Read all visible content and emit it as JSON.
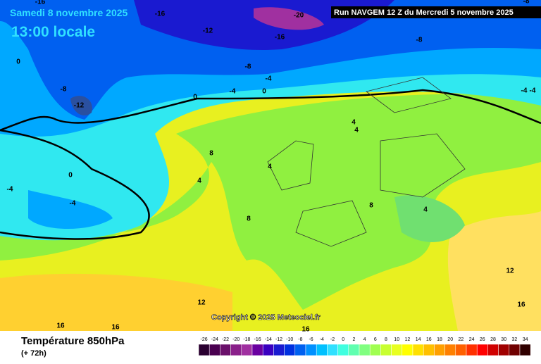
{
  "header": {
    "date": "Samedi 8 novembre 2025",
    "time": "13:00 locale",
    "run": "Run NAVGEM 12 Z du Mercredi 5 novembre 2025",
    "copyright": "Copyright © 2025 Meteociel.fr"
  },
  "footer": {
    "title": "Température 850hPa",
    "subtitle": "(+ 72h)"
  },
  "colorbar": {
    "ticks": [
      -26,
      -24,
      -22,
      -20,
      -18,
      -16,
      -14,
      -12,
      -10,
      -8,
      -6,
      -4,
      -2,
      0,
      2,
      4,
      6,
      8,
      10,
      12,
      14,
      16,
      18,
      20,
      22,
      24,
      26,
      28,
      30,
      32,
      34
    ],
    "colors": [
      "#2a0030",
      "#4a0050",
      "#6a106a",
      "#8a208a",
      "#a030a0",
      "#6a00a0",
      "#3a00c0",
      "#1a1ad0",
      "#0030e0",
      "#0060f0",
      "#0090ff",
      "#00c0ff",
      "#30e0ff",
      "#40ffe0",
      "#60ffb0",
      "#80ff80",
      "#a0ff50",
      "#c8ff30",
      "#e8ff20",
      "#ffff00",
      "#ffe000",
      "#ffc000",
      "#ffa000",
      "#ff8000",
      "#ff6000",
      "#ff3000",
      "#ff0000",
      "#d00000",
      "#a00000",
      "#700000",
      "#300000"
    ]
  },
  "contour_labels": [
    -16,
    -16,
    -20,
    -12,
    -16,
    -8,
    -8,
    -4,
    0,
    -4,
    0,
    0,
    -8,
    -12,
    0,
    -4,
    -4,
    8,
    4,
    4,
    8,
    4,
    4,
    8,
    4,
    12,
    16,
    16,
    16,
    12,
    16,
    -4,
    -4,
    -8
  ]
}
